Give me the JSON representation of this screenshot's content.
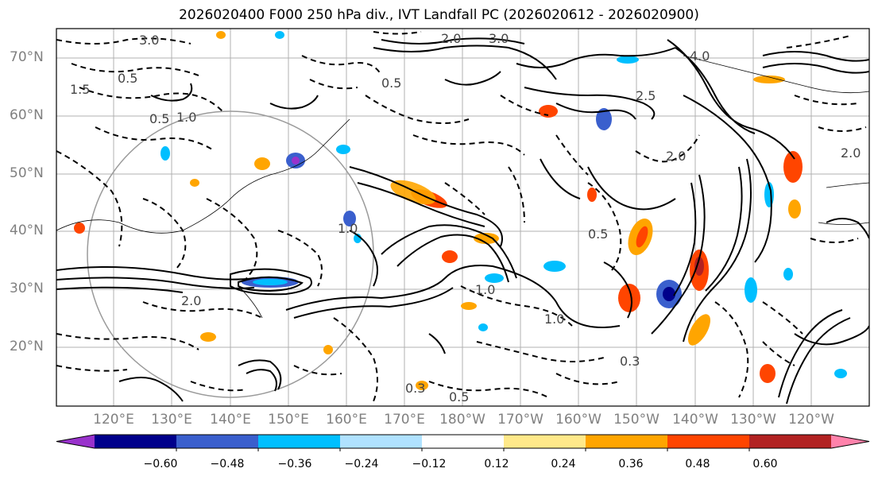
{
  "title": "2026020400 F000 250 hPa div., IVT Landfall PC (2026020612 - 2026020900)",
  "lat_labels": [
    "70°N",
    "60°N",
    "50°N",
    "40°N",
    "30°N",
    "20°N"
  ],
  "lon_labels": [
    "120°E",
    "130°E",
    "140°E",
    "150°E",
    "160°E",
    "170°E",
    "180°W",
    "170°W",
    "160°W",
    "150°W",
    "140°W",
    "130°W",
    "120°W"
  ],
  "contour_labels": [
    "3.0",
    "2.0",
    "1.0",
    "0.5",
    "0.3",
    "1.5",
    "4.0",
    "2.5"
  ],
  "colorbar": {
    "ticks": [
      "−0.60",
      "−0.48",
      "−0.36",
      "−0.24",
      "−0.12",
      "0.12",
      "0.24",
      "0.36",
      "0.48",
      "0.60"
    ],
    "colors": [
      "#9932cc",
      "#00008b",
      "#3a5fcd",
      "#00bfff",
      "#b0e2ff",
      "#ffffff",
      "#ffe98a",
      "#ffa500",
      "#ff4500",
      "#b22222",
      "#ff82ab"
    ]
  }
}
